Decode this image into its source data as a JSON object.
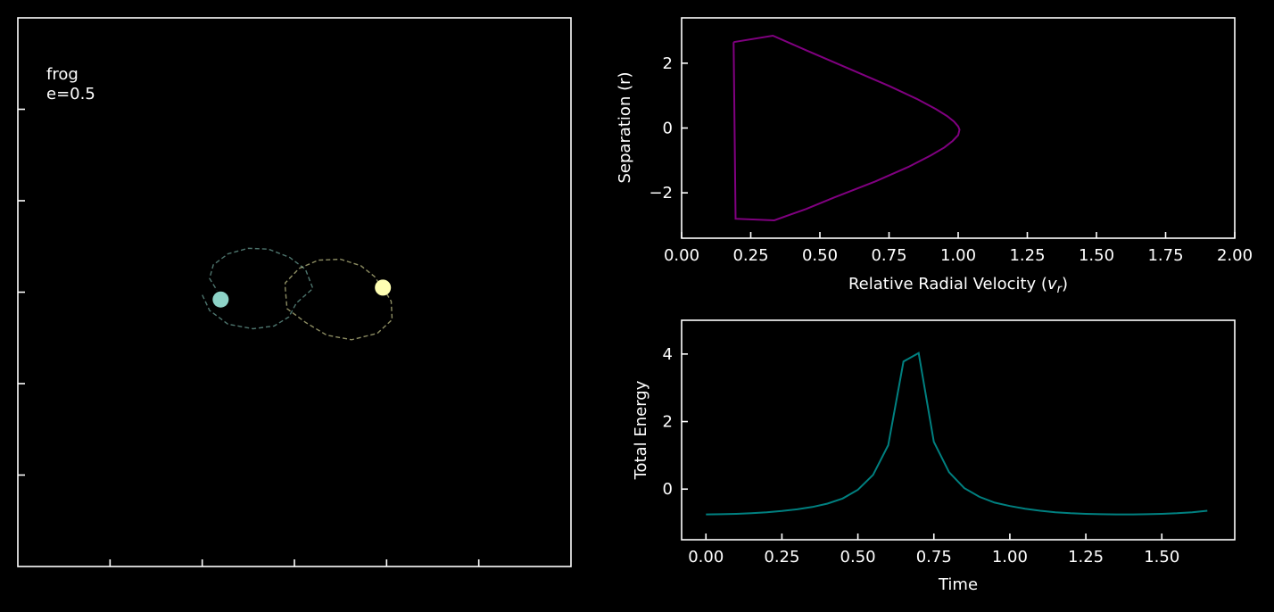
{
  "chart_data": [
    {
      "type": "scatter",
      "panel": "orbit",
      "annotation_lines": [
        "frog",
        "e=0.5"
      ],
      "axes_visible_labels": false,
      "xlim": [
        -3,
        3
      ],
      "ylim": [
        -3,
        3
      ],
      "bodies": [
        {
          "x": -0.8,
          "y": -0.08,
          "color": "#8dd3c7"
        },
        {
          "x": 0.96,
          "y": 0.05,
          "color": "#ffffb3"
        }
      ],
      "trails": [
        {
          "color": "#8dd3c7",
          "points": [
            [
              -1.0,
              -0.03
            ],
            [
              -0.92,
              -0.2
            ],
            [
              -0.72,
              -0.35
            ],
            [
              -0.45,
              -0.4
            ],
            [
              -0.22,
              -0.37
            ],
            [
              -0.06,
              -0.27
            ],
            [
              0.02,
              -0.12
            ],
            [
              0.2,
              0.04
            ],
            [
              0.12,
              0.25
            ],
            [
              -0.05,
              0.38
            ],
            [
              -0.28,
              0.47
            ],
            [
              -0.5,
              0.48
            ],
            [
              -0.72,
              0.42
            ],
            [
              -0.88,
              0.3
            ],
            [
              -0.92,
              0.15
            ],
            [
              -0.84,
              0.02
            ]
          ]
        },
        {
          "color": "#ffffb3",
          "points": [
            [
              0.96,
              0.05
            ],
            [
              1.05,
              -0.1
            ],
            [
              1.06,
              -0.3
            ],
            [
              0.9,
              -0.45
            ],
            [
              0.62,
              -0.52
            ],
            [
              0.35,
              -0.47
            ],
            [
              0.12,
              -0.33
            ],
            [
              -0.08,
              -0.18
            ],
            [
              -0.1,
              0.05
            ],
            [
              -0.1,
              0.1
            ],
            [
              0.05,
              0.26
            ],
            [
              0.26,
              0.35
            ],
            [
              0.5,
              0.36
            ],
            [
              0.72,
              0.29
            ],
            [
              0.87,
              0.17
            ],
            [
              0.97,
              0.02
            ]
          ]
        }
      ]
    },
    {
      "type": "line",
      "panel": "phase",
      "xlabel": "Relative Radial Velocity (v_r)",
      "xlabel_main": "Relative Radial Velocity (",
      "xlabel_var": "v",
      "xlabel_sub": "r",
      "xlabel_close": ")",
      "ylabel": "Separation (r)",
      "xlim": [
        0,
        2
      ],
      "ylim": [
        -3.4,
        3.4
      ],
      "xticks": [
        0.0,
        0.25,
        0.5,
        0.75,
        1.0,
        1.25,
        1.5,
        1.75,
        2.0
      ],
      "xtick_labels": [
        "0.00",
        "0.25",
        "0.50",
        "0.75",
        "1.00",
        "1.25",
        "1.50",
        "1.75",
        "2.00"
      ],
      "yticks": [
        -2,
        0,
        2
      ],
      "ytick_labels": [
        "−2",
        "0",
        "2"
      ],
      "color": "#800080",
      "x": [
        0.188,
        0.33,
        0.45,
        0.6,
        0.75,
        0.85,
        0.92,
        0.96,
        0.985,
        1.0,
        1.005,
        1.0,
        0.98,
        0.95,
        0.9,
        0.82,
        0.7,
        0.55,
        0.45,
        0.335,
        0.195,
        0.188
      ],
      "y": [
        2.65,
        2.85,
        2.4,
        1.85,
        1.3,
        0.9,
        0.58,
        0.37,
        0.2,
        0.05,
        -0.05,
        -0.22,
        -0.4,
        -0.6,
        -0.85,
        -1.2,
        -1.65,
        -2.15,
        -2.5,
        -2.85,
        -2.8,
        2.65
      ]
    },
    {
      "type": "line",
      "panel": "energy",
      "xlabel": "Time",
      "ylabel": "Total Energy",
      "xlim": [
        -0.08,
        1.74
      ],
      "ylim": [
        -1.5,
        5
      ],
      "xticks": [
        0.0,
        0.25,
        0.5,
        0.75,
        1.0,
        1.25,
        1.5
      ],
      "xtick_labels": [
        "0.00",
        "0.25",
        "0.50",
        "0.75",
        "1.00",
        "1.25",
        "1.50"
      ],
      "yticks": [
        0,
        2,
        4
      ],
      "ytick_labels": [
        "0",
        "2",
        "4"
      ],
      "color": "#008080",
      "x": [
        0.0,
        0.05,
        0.1,
        0.15,
        0.2,
        0.25,
        0.3,
        0.35,
        0.4,
        0.45,
        0.5,
        0.55,
        0.6,
        0.65,
        0.7,
        0.75,
        0.8,
        0.85,
        0.9,
        0.95,
        1.0,
        1.05,
        1.1,
        1.15,
        1.2,
        1.25,
        1.3,
        1.35,
        1.4,
        1.45,
        1.5,
        1.55,
        1.6,
        1.65
      ],
      "y": [
        -0.75,
        -0.745,
        -0.735,
        -0.715,
        -0.69,
        -0.65,
        -0.6,
        -0.53,
        -0.43,
        -0.28,
        -0.02,
        0.42,
        1.3,
        3.78,
        4.03,
        1.4,
        0.5,
        0.03,
        -0.23,
        -0.4,
        -0.5,
        -0.58,
        -0.64,
        -0.685,
        -0.715,
        -0.735,
        -0.745,
        -0.75,
        -0.75,
        -0.745,
        -0.735,
        -0.715,
        -0.685,
        -0.64
      ]
    }
  ]
}
